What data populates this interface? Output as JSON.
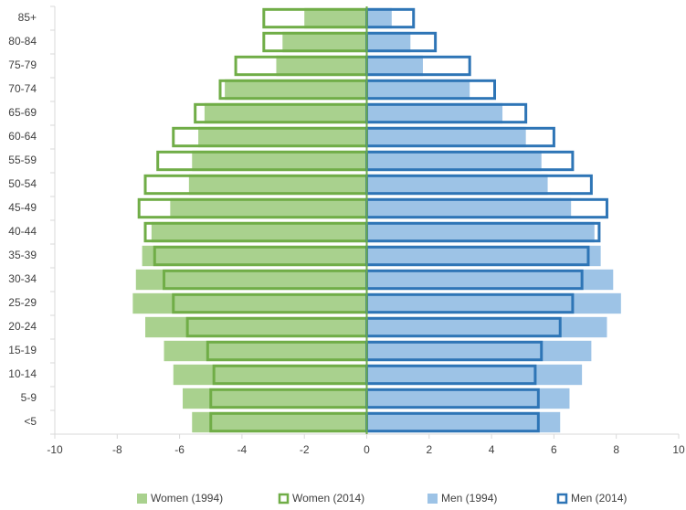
{
  "chart_data": {
    "type": "pyramid",
    "categories": [
      "85+",
      "80-84",
      "75-79",
      "70-74",
      "65-69",
      "60-64",
      "55-59",
      "50-54",
      "45-49",
      "40-44",
      "35-39",
      "30-34",
      "25-29",
      "20-24",
      "15-19",
      "10-14",
      "5-9",
      "<5"
    ],
    "series": [
      {
        "name": "Women (1994)",
        "color": "#a9d18e",
        "filled": true,
        "values": [
          -2.0,
          -2.7,
          -2.9,
          -4.55,
          -5.2,
          -5.4,
          -5.6,
          -5.7,
          -6.3,
          -6.9,
          -7.2,
          -7.4,
          -7.5,
          -7.1,
          -6.5,
          -6.2,
          -5.9,
          -5.6
        ]
      },
      {
        "name": "Women (2014)",
        "color": "#70ad47",
        "filled": false,
        "values": [
          -3.3,
          -3.3,
          -4.2,
          -4.7,
          -5.5,
          -6.2,
          -6.7,
          -7.1,
          -7.3,
          -7.1,
          -6.8,
          -6.5,
          -6.2,
          -5.75,
          -5.1,
          -4.9,
          -5.0,
          -5.0
        ]
      },
      {
        "name": "Men (1994)",
        "color": "#9dc3e6",
        "filled": true,
        "values": [
          0.8,
          1.4,
          1.8,
          3.3,
          4.35,
          5.1,
          5.6,
          5.8,
          6.55,
          7.3,
          7.5,
          7.9,
          8.15,
          7.7,
          7.2,
          6.9,
          6.5,
          6.2
        ]
      },
      {
        "name": "Men (2014)",
        "color": "#2e75b6",
        "filled": false,
        "values": [
          1.5,
          2.2,
          3.3,
          4.1,
          5.1,
          6.0,
          6.6,
          7.2,
          7.7,
          7.45,
          7.1,
          6.9,
          6.6,
          6.2,
          5.6,
          5.4,
          5.5,
          5.5
        ]
      }
    ],
    "xlim": [
      -10,
      10
    ],
    "xticks": [
      -10,
      -8,
      -6,
      -4,
      -2,
      0,
      2,
      4,
      6,
      8,
      10
    ],
    "legend": "bottom"
  }
}
